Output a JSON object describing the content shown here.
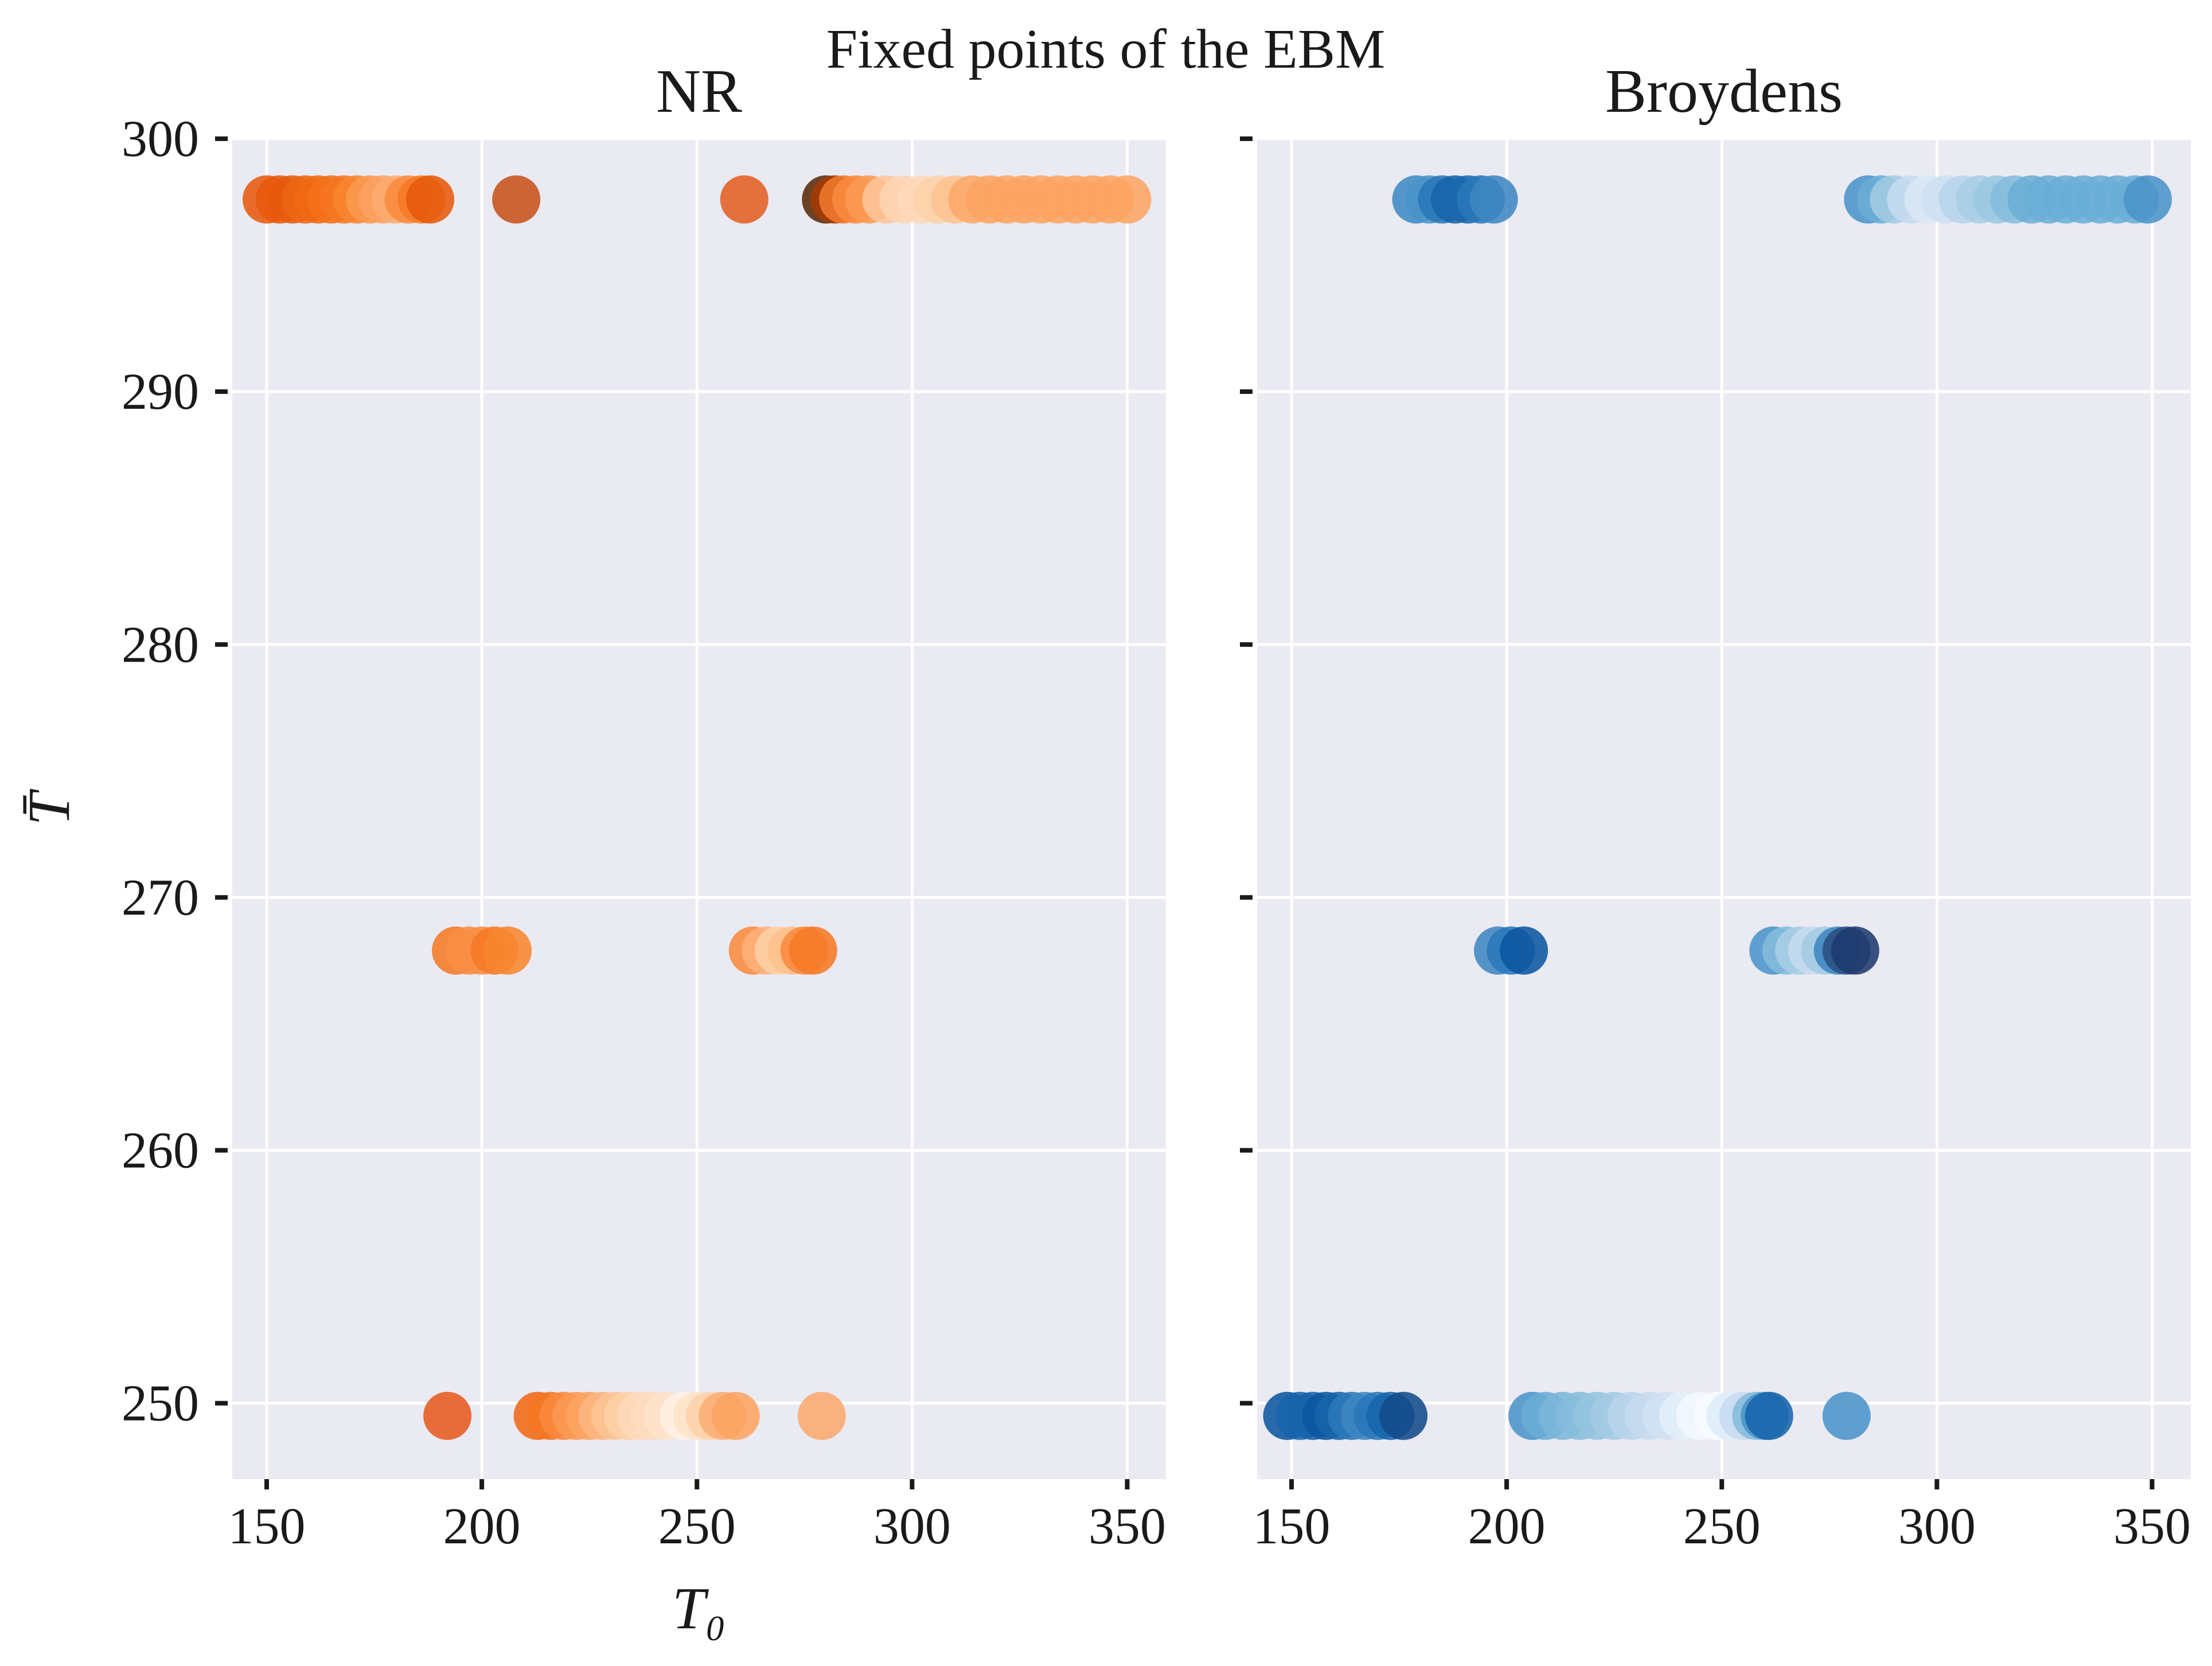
{
  "figure": {
    "suptitle": "Fixed points of the EBM"
  },
  "chart_data": [
    {
      "type": "scatter",
      "title": "NR",
      "xlabel": "T₀",
      "ylabel": "T̄",
      "xlim": [
        142,
        359
      ],
      "ylim": [
        247,
        300
      ],
      "xticks": [
        150,
        200,
        250,
        300,
        350
      ],
      "yticks": [
        250,
        260,
        270,
        280,
        290,
        300
      ],
      "grid": true,
      "colormap": "Oranges",
      "points": [
        {
          "x": 150,
          "y": 297.6,
          "color": "#e8590c"
        },
        {
          "x": 153,
          "y": 297.6,
          "color": "#e8590c"
        },
        {
          "x": 156,
          "y": 297.6,
          "color": "#e65a0d"
        },
        {
          "x": 159,
          "y": 297.6,
          "color": "#ec6512"
        },
        {
          "x": 162,
          "y": 297.6,
          "color": "#f16913"
        },
        {
          "x": 165,
          "y": 297.6,
          "color": "#f36f19"
        },
        {
          "x": 168,
          "y": 297.6,
          "color": "#f57622"
        },
        {
          "x": 171,
          "y": 297.6,
          "color": "#f7862f"
        },
        {
          "x": 174,
          "y": 297.6,
          "color": "#fa9a4f"
        },
        {
          "x": 177,
          "y": 297.6,
          "color": "#fca163"
        },
        {
          "x": 180,
          "y": 297.6,
          "color": "#fdab70"
        },
        {
          "x": 183,
          "y": 297.6,
          "color": "#f98a3d"
        },
        {
          "x": 186,
          "y": 297.6,
          "color": "#f57a25"
        },
        {
          "x": 188,
          "y": 297.6,
          "color": "#e65a0d"
        },
        {
          "x": 208,
          "y": 297.6,
          "color": "#c6521a"
        },
        {
          "x": 261,
          "y": 297.6,
          "color": "#e35f23"
        },
        {
          "x": 280,
          "y": 297.6,
          "color": "#5a2a0a"
        },
        {
          "x": 282,
          "y": 297.6,
          "color": "#a43a03"
        },
        {
          "x": 284,
          "y": 297.6,
          "color": "#f07a2e"
        },
        {
          "x": 287,
          "y": 297.6,
          "color": "#f98a3d"
        },
        {
          "x": 290,
          "y": 297.6,
          "color": "#fb9a53"
        },
        {
          "x": 294,
          "y": 297.6,
          "color": "#fdc49a"
        },
        {
          "x": 298,
          "y": 297.6,
          "color": "#fdd5b3"
        },
        {
          "x": 302,
          "y": 297.6,
          "color": "#fed8b8"
        },
        {
          "x": 306,
          "y": 297.6,
          "color": "#fdd2a9"
        },
        {
          "x": 310,
          "y": 297.6,
          "color": "#fdc390"
        },
        {
          "x": 314,
          "y": 297.6,
          "color": "#fca86a"
        },
        {
          "x": 318,
          "y": 297.6,
          "color": "#fca462"
        },
        {
          "x": 322,
          "y": 297.6,
          "color": "#fca462"
        },
        {
          "x": 326,
          "y": 297.6,
          "color": "#fca462"
        },
        {
          "x": 330,
          "y": 297.6,
          "color": "#fca462"
        },
        {
          "x": 334,
          "y": 297.6,
          "color": "#fca462"
        },
        {
          "x": 338,
          "y": 297.6,
          "color": "#fca462"
        },
        {
          "x": 342,
          "y": 297.6,
          "color": "#fca462"
        },
        {
          "x": 346,
          "y": 297.6,
          "color": "#fca462"
        },
        {
          "x": 350,
          "y": 297.6,
          "color": "#fca462"
        },
        {
          "x": 194,
          "y": 267.9,
          "color": "#f57a25"
        },
        {
          "x": 197,
          "y": 267.9,
          "color": "#f98d44"
        },
        {
          "x": 200,
          "y": 267.9,
          "color": "#f98d44"
        },
        {
          "x": 203,
          "y": 267.9,
          "color": "#f57a25"
        },
        {
          "x": 206,
          "y": 267.9,
          "color": "#f7862f"
        },
        {
          "x": 263,
          "y": 267.9,
          "color": "#f98a3d"
        },
        {
          "x": 266,
          "y": 267.9,
          "color": "#fdb07a"
        },
        {
          "x": 269,
          "y": 267.9,
          "color": "#fdd0a6"
        },
        {
          "x": 272,
          "y": 267.9,
          "color": "#fdc08b"
        },
        {
          "x": 275,
          "y": 267.9,
          "color": "#f98a3d"
        },
        {
          "x": 277,
          "y": 267.9,
          "color": "#f57a25"
        },
        {
          "x": 192,
          "y": 249.5,
          "color": "#e65a20"
        },
        {
          "x": 213,
          "y": 249.5,
          "color": "#f16913"
        },
        {
          "x": 216,
          "y": 249.5,
          "color": "#f57622"
        },
        {
          "x": 219,
          "y": 249.5,
          "color": "#f98a3d"
        },
        {
          "x": 222,
          "y": 249.5,
          "color": "#fb9a53"
        },
        {
          "x": 225,
          "y": 249.5,
          "color": "#fca462"
        },
        {
          "x": 228,
          "y": 249.5,
          "color": "#fdb57f"
        },
        {
          "x": 231,
          "y": 249.5,
          "color": "#fdc494"
        },
        {
          "x": 234,
          "y": 249.5,
          "color": "#fdd0a6"
        },
        {
          "x": 237,
          "y": 249.5,
          "color": "#fed8b8"
        },
        {
          "x": 240,
          "y": 249.5,
          "color": "#fedcbf"
        },
        {
          "x": 243,
          "y": 249.5,
          "color": "#fee3cb"
        },
        {
          "x": 247,
          "y": 249.5,
          "color": "#fff1e4"
        },
        {
          "x": 250,
          "y": 249.5,
          "color": "#fde2c8"
        },
        {
          "x": 253,
          "y": 249.5,
          "color": "#fdd2a9"
        },
        {
          "x": 256,
          "y": 249.5,
          "color": "#fcad74"
        },
        {
          "x": 259,
          "y": 249.5,
          "color": "#fca462"
        },
        {
          "x": 279,
          "y": 249.5,
          "color": "#fba970"
        }
      ]
    },
    {
      "type": "scatter",
      "title": "Broydens",
      "xlabel": "",
      "ylabel": "",
      "xlim": [
        142,
        359
      ],
      "ylim": [
        247,
        300
      ],
      "xticks": [
        150,
        200,
        250,
        300,
        350
      ],
      "yticks": [
        250,
        260,
        270,
        280,
        290,
        300
      ],
      "grid": true,
      "colormap": "Blues",
      "points": [
        {
          "x": 179,
          "y": 297.6,
          "color": "#3f8ac4"
        },
        {
          "x": 182,
          "y": 297.6,
          "color": "#4a94c9"
        },
        {
          "x": 185,
          "y": 297.6,
          "color": "#2a78b8"
        },
        {
          "x": 188,
          "y": 297.6,
          "color": "#1764ab"
        },
        {
          "x": 191,
          "y": 297.6,
          "color": "#1a68ae"
        },
        {
          "x": 194,
          "y": 297.6,
          "color": "#2878b8"
        },
        {
          "x": 197,
          "y": 297.6,
          "color": "#3d86c2"
        },
        {
          "x": 284,
          "y": 297.6,
          "color": "#4a94c9"
        },
        {
          "x": 287,
          "y": 297.6,
          "color": "#6aaed6"
        },
        {
          "x": 290,
          "y": 297.6,
          "color": "#a3cbe3"
        },
        {
          "x": 294,
          "y": 297.6,
          "color": "#c6dbef"
        },
        {
          "x": 298,
          "y": 297.6,
          "color": "#d9e7f5"
        },
        {
          "x": 302,
          "y": 297.6,
          "color": "#cde0f1"
        },
        {
          "x": 306,
          "y": 297.6,
          "color": "#b7d4ea"
        },
        {
          "x": 310,
          "y": 297.6,
          "color": "#a9cee5"
        },
        {
          "x": 314,
          "y": 297.6,
          "color": "#9ac8e0"
        },
        {
          "x": 318,
          "y": 297.6,
          "color": "#85bcdc"
        },
        {
          "x": 322,
          "y": 297.6,
          "color": "#6aaed6"
        },
        {
          "x": 326,
          "y": 297.6,
          "color": "#6aaed6"
        },
        {
          "x": 330,
          "y": 297.6,
          "color": "#6aaed6"
        },
        {
          "x": 334,
          "y": 297.6,
          "color": "#6aaed6"
        },
        {
          "x": 338,
          "y": 297.6,
          "color": "#6aaed6"
        },
        {
          "x": 342,
          "y": 297.6,
          "color": "#6aaed6"
        },
        {
          "x": 346,
          "y": 297.6,
          "color": "#6aaed6"
        },
        {
          "x": 349,
          "y": 297.6,
          "color": "#4a94c9"
        },
        {
          "x": 198,
          "y": 267.9,
          "color": "#3d86c2"
        },
        {
          "x": 201,
          "y": 267.9,
          "color": "#2a78b8"
        },
        {
          "x": 204,
          "y": 267.9,
          "color": "#0d57a1"
        },
        {
          "x": 262,
          "y": 267.9,
          "color": "#4a94c9"
        },
        {
          "x": 265,
          "y": 267.9,
          "color": "#85bcdc"
        },
        {
          "x": 268,
          "y": 267.9,
          "color": "#a9cee5"
        },
        {
          "x": 271,
          "y": 267.9,
          "color": "#c6dbef"
        },
        {
          "x": 274,
          "y": 267.9,
          "color": "#a3cbe3"
        },
        {
          "x": 277,
          "y": 267.9,
          "color": "#3d86c2"
        },
        {
          "x": 279,
          "y": 267.9,
          "color": "#2a4f80"
        },
        {
          "x": 281,
          "y": 267.9,
          "color": "#1f3a6e"
        },
        {
          "x": 149,
          "y": 249.5,
          "color": "#0d57a1"
        },
        {
          "x": 152,
          "y": 249.5,
          "color": "#1764ab"
        },
        {
          "x": 155,
          "y": 249.5,
          "color": "#1764ab"
        },
        {
          "x": 158,
          "y": 249.5,
          "color": "#0d57a1"
        },
        {
          "x": 161,
          "y": 249.5,
          "color": "#1764ab"
        },
        {
          "x": 164,
          "y": 249.5,
          "color": "#2a78b8"
        },
        {
          "x": 167,
          "y": 249.5,
          "color": "#3d86c2"
        },
        {
          "x": 170,
          "y": 249.5,
          "color": "#2a78b8"
        },
        {
          "x": 173,
          "y": 249.5,
          "color": "#1764ab"
        },
        {
          "x": 176,
          "y": 249.5,
          "color": "#124a8a"
        },
        {
          "x": 206,
          "y": 249.5,
          "color": "#4a94c9"
        },
        {
          "x": 209,
          "y": 249.5,
          "color": "#6aaed6"
        },
        {
          "x": 213,
          "y": 249.5,
          "color": "#7bb6d9"
        },
        {
          "x": 217,
          "y": 249.5,
          "color": "#85bcdc"
        },
        {
          "x": 221,
          "y": 249.5,
          "color": "#94c4df"
        },
        {
          "x": 225,
          "y": 249.5,
          "color": "#a3cbe3"
        },
        {
          "x": 229,
          "y": 249.5,
          "color": "#b7d4ea"
        },
        {
          "x": 233,
          "y": 249.5,
          "color": "#c6dbef"
        },
        {
          "x": 237,
          "y": 249.5,
          "color": "#d0e1f2"
        },
        {
          "x": 241,
          "y": 249.5,
          "color": "#e3eef9"
        },
        {
          "x": 245,
          "y": 249.5,
          "color": "#f3f8fe"
        },
        {
          "x": 249,
          "y": 249.5,
          "color": "#f7fbff"
        },
        {
          "x": 252,
          "y": 249.5,
          "color": "#deebf7"
        },
        {
          "x": 255,
          "y": 249.5,
          "color": "#c6dbef"
        },
        {
          "x": 258,
          "y": 249.5,
          "color": "#85bcdc"
        },
        {
          "x": 260,
          "y": 249.5,
          "color": "#4a94c9"
        },
        {
          "x": 261,
          "y": 249.5,
          "color": "#1764ab"
        },
        {
          "x": 279,
          "y": 249.5,
          "color": "#4a94c9"
        }
      ]
    }
  ]
}
